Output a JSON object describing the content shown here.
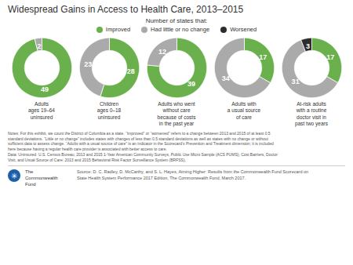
{
  "title": "Widespread Gains in Access to Health Care, 2013–2015",
  "legend": "top",
  "legend_title": "Number of states that:",
  "notes": [
    "Notes: For this exhibit, we count the District of Columbia as a state. “Improved” or “worsened” refers to a change between 2013 and 2015 of at least 0.5",
    "standard deviations. “Little or no change” includes states with changes of less than 0.5 standard deviations as well as states with no change or without",
    "sufficient data to assess change. “Adults with a usual source of care” is an indicator in the Scorecard’s Prevention and Treatment dimension; it is included",
    "here because having a regular health care provider is associated with better access to care.",
    "Data: Uninsured: U.S. Census Bureau, 2013 and 2015 1-Year American Community Surveys, Public Use Micro Sample (ACS PUMS); Cost Barriers, Doctor",
    "Visit, and Usual Source of Care: 2013 and 2015 Behavioral Risk Factor Surveillance System (BRFSS)."
  ],
  "logo": {
    "label": "✳",
    "color": "#1a5fa8"
  },
  "footer_name": "The\nCommonwealth\nFund",
  "source": [
    "Source: D. C. Radley, D. McCarthy, and S. L. Hayes, Aiming Higher: Results from the Commonwealth Fund Scorecard on",
    "State Health System Performance 2017 Edition, The Commonwealth Fund, March 2017."
  ],
  "chart_data": [
    {
      "type": "pie",
      "title": "Adults\nages 19–64\nuninsured",
      "categories": [
        "Improved",
        "Had little or no change",
        "Worsened"
      ],
      "values": [
        49,
        2,
        0
      ],
      "colors": [
        "#6ab04c",
        "#aaaaaa",
        "#2d2d2d"
      ],
      "data_labels": true
    },
    {
      "type": "pie",
      "title": "Children\nages 0–18\nuninsured",
      "categories": [
        "Improved",
        "Had little or no change",
        "Worsened"
      ],
      "values": [
        28,
        23,
        0
      ],
      "colors": [
        "#6ab04c",
        "#aaaaaa",
        "#2d2d2d"
      ],
      "data_labels": true
    },
    {
      "type": "pie",
      "title": "Adults who went\nwithout care\nbecause of costs\nin the past year",
      "categories": [
        "Improved",
        "Had little or no change",
        "Worsened"
      ],
      "values": [
        39,
        12,
        0
      ],
      "colors": [
        "#6ab04c",
        "#aaaaaa",
        "#2d2d2d"
      ],
      "data_labels": true
    },
    {
      "type": "pie",
      "title": "Adults with\na usual source\nof care",
      "categories": [
        "Improved",
        "Had little or no change",
        "Worsened"
      ],
      "values": [
        17,
        34,
        0
      ],
      "colors": [
        "#6ab04c",
        "#aaaaaa",
        "#2d2d2d"
      ],
      "data_labels": true
    },
    {
      "type": "pie",
      "title": "At-risk adults\nwith a routine\ndoctor visit in\npast two years",
      "categories": [
        "Improved",
        "Had little or no change",
        "Worsened"
      ],
      "values": [
        17,
        31,
        3
      ],
      "colors": [
        "#6ab04c",
        "#aaaaaa",
        "#2d2d2d"
      ],
      "data_labels": true
    }
  ]
}
